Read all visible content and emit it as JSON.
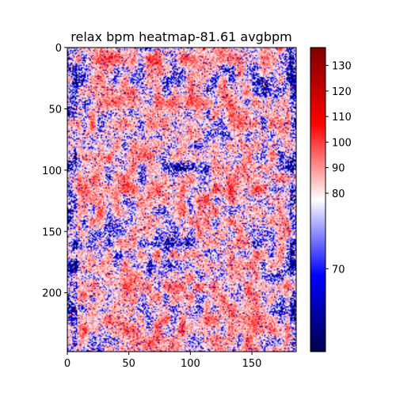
{
  "chart_data": {
    "type": "heatmap",
    "title": "relax bpm heatmap-81.61 avgbpm",
    "xlabel": "",
    "ylabel": "",
    "rows": 248,
    "cols": 186,
    "xlim": [
      0,
      186
    ],
    "ylim": [
      248,
      0
    ],
    "x_ticks": [
      0,
      50,
      100,
      150
    ],
    "y_ticks": [
      0,
      50,
      100,
      150,
      200
    ],
    "colormap": "seismic",
    "colormap_stops": [
      "#00004c",
      "#0000ff",
      "#ffffff",
      "#ff0000",
      "#7f0000"
    ],
    "colorbar": {
      "min": 61,
      "center": 77.5,
      "max": 137,
      "ticks": [
        70,
        80,
        90,
        100,
        110,
        120,
        130
      ]
    },
    "mean_value": 81.61,
    "grid": false
  }
}
